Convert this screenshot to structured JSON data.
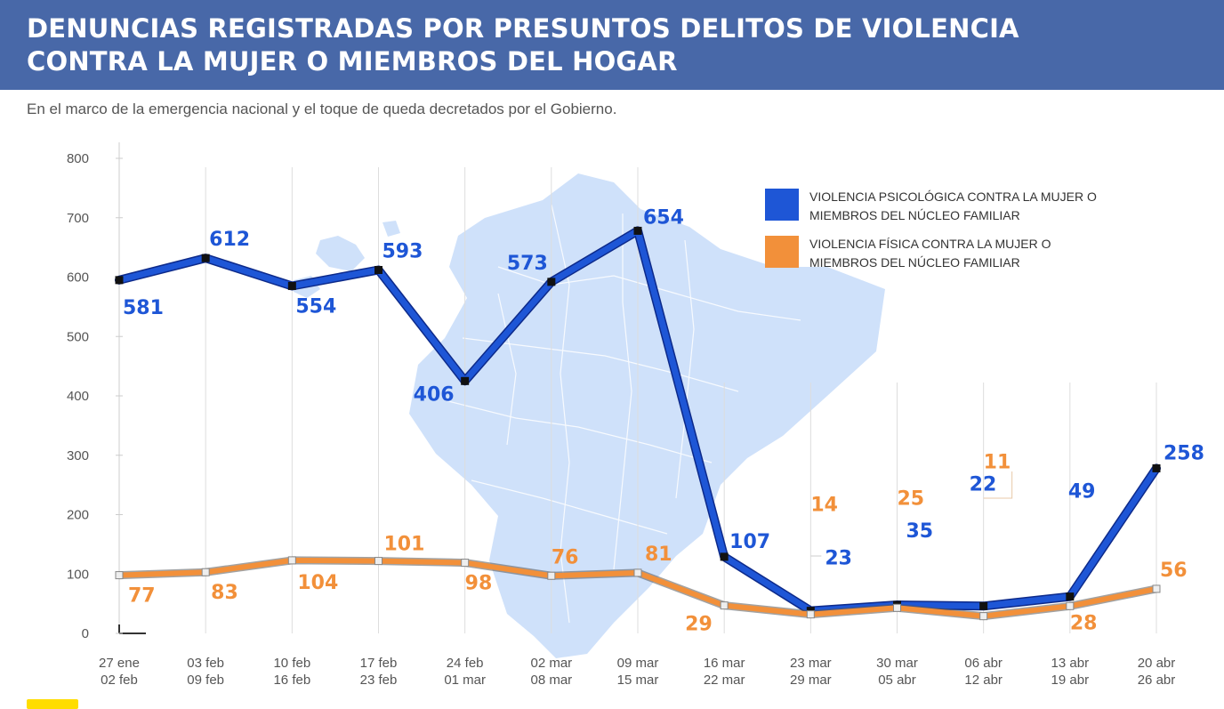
{
  "title_lines": [
    "DENUNCIAS REGISTRADAS POR PRESUNTOS DELITOS DE VIOLENCIA",
    "CONTRA LA MUJER O MIEMBROS DEL HOGAR"
  ],
  "subtitle": "En el marco de la emergencia nacional y el toque de queda decretados por el Gobierno.",
  "colors": {
    "header_bg": "#4868a8",
    "psychological": "#1e56d6",
    "physical": "#f2903a",
    "axis_text": "#555555",
    "map": "#cfe1fa"
  },
  "chart_data": {
    "type": "line",
    "title": "DENUNCIAS REGISTRADAS POR PRESUNTOS DELITOS DE VIOLENCIA CONTRA LA MUJER O MIEMBROS DEL HOGAR",
    "xlabel": "",
    "ylabel": "",
    "ylim": [
      0,
      800
    ],
    "yticks": [
      0,
      100,
      200,
      300,
      400,
      500,
      600,
      700,
      800
    ],
    "categories": [
      [
        "27 ene",
        "02 feb"
      ],
      [
        "03 feb",
        "09 feb"
      ],
      [
        "10 feb",
        "16 feb"
      ],
      [
        "17 feb",
        "23 feb"
      ],
      [
        "24 feb",
        "01 mar"
      ],
      [
        "02 mar",
        "08 mar"
      ],
      [
        "09 mar",
        "15 mar"
      ],
      [
        "16 mar",
        "22 mar"
      ],
      [
        "23 mar",
        "29 mar"
      ],
      [
        "30 mar",
        "05 abr"
      ],
      [
        "06 abr",
        "12 abr"
      ],
      [
        "13 abr",
        "19 abr"
      ],
      [
        "20 abr",
        "26 abr"
      ]
    ],
    "series": [
      {
        "name": "VIOLENCIA PSICOLÓGICA CONTRA LA MUJER O MIEMBROS DEL NÚCLEO FAMILIAR",
        "legend_lines": [
          "VIOLENCIA PSICOLÓGICA CONTRA LA MUJER O",
          "MIEMBROS DEL NÚCLEO FAMILIAR"
        ],
        "color": "#1e56d6",
        "values": [
          581,
          612,
          554,
          593,
          406,
          573,
          654,
          107,
          23,
          35,
          22,
          49,
          258
        ],
        "plotted_values": [
          595,
          632,
          585,
          612,
          425,
          592,
          678,
          129,
          38,
          48,
          46,
          62,
          278
        ],
        "labels": [
          "581",
          "612",
          "554",
          "593",
          "406",
          "573",
          "654",
          "107",
          "23",
          "35",
          "22",
          "49",
          "258"
        ]
      },
      {
        "name": "VIOLENCIA FÍSICA CONTRA LA MUJER O MIEMBROS DEL NÚCLEO FAMILIAR",
        "legend_lines": [
          "VIOLENCIA FÍSICA CONTRA LA MUJER O",
          "MIEMBROS DEL NÚCLEO FAMILIAR"
        ],
        "color": "#f2903a",
        "values": [
          77,
          83,
          104,
          101,
          98,
          76,
          81,
          29,
          14,
          25,
          11,
          28,
          56
        ],
        "plotted_values": [
          98,
          103,
          123,
          122,
          119,
          97,
          102,
          47,
          32,
          43,
          29,
          46,
          75
        ],
        "labels": [
          "77",
          "83",
          "104",
          "101",
          "98",
          "76",
          "81",
          "29",
          "14",
          "25",
          "11",
          "28",
          "56"
        ]
      }
    ],
    "legend_position": "top-right",
    "background_map": "Ecuador"
  }
}
